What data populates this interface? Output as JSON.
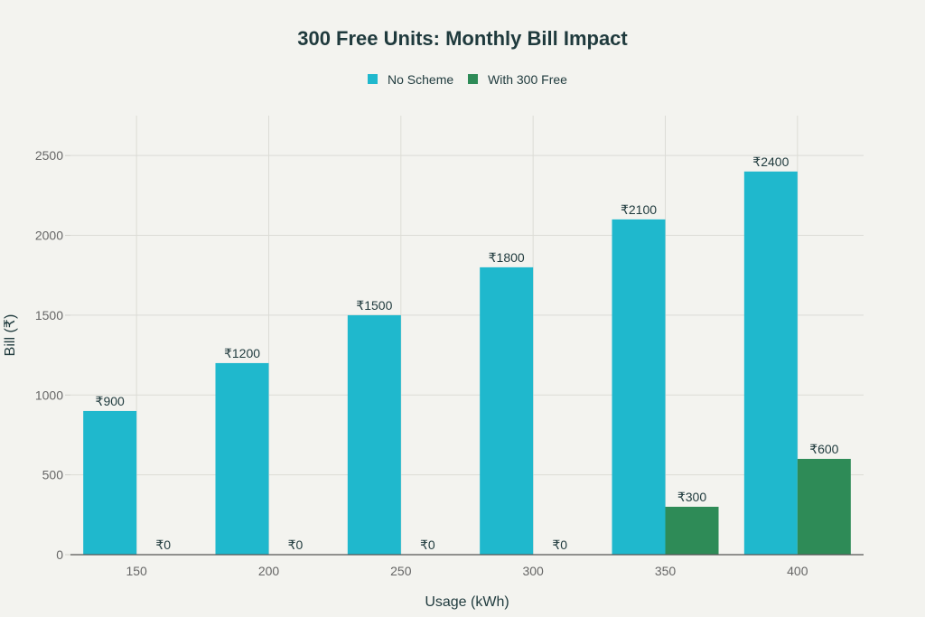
{
  "chart_data": {
    "type": "bar",
    "title": "300 Free Units: Monthly Bill Impact",
    "xlabel": "Usage (kWh)",
    "ylabel": "Bill (₹)",
    "categories": [
      "150",
      "200",
      "250",
      "300",
      "350",
      "400"
    ],
    "series": [
      {
        "name": "No Scheme",
        "color": "#1FB8CD",
        "values": [
          900,
          1200,
          1500,
          1800,
          2100,
          2400
        ],
        "labels": [
          "₹900",
          "₹1200",
          "₹1500",
          "₹1800",
          "₹2100",
          "₹2400"
        ]
      },
      {
        "name": "With 300 Free",
        "color": "#2E8B57",
        "values": [
          0,
          0,
          0,
          0,
          300,
          600
        ],
        "labels": [
          "₹0",
          "₹0",
          "₹0",
          "₹0",
          "₹300",
          "₹600"
        ]
      }
    ],
    "ylim": [
      0,
      2750
    ],
    "yticks": [
      0,
      500,
      1000,
      1500,
      2000,
      2500
    ],
    "grid": true,
    "legend_position": "top-center"
  }
}
